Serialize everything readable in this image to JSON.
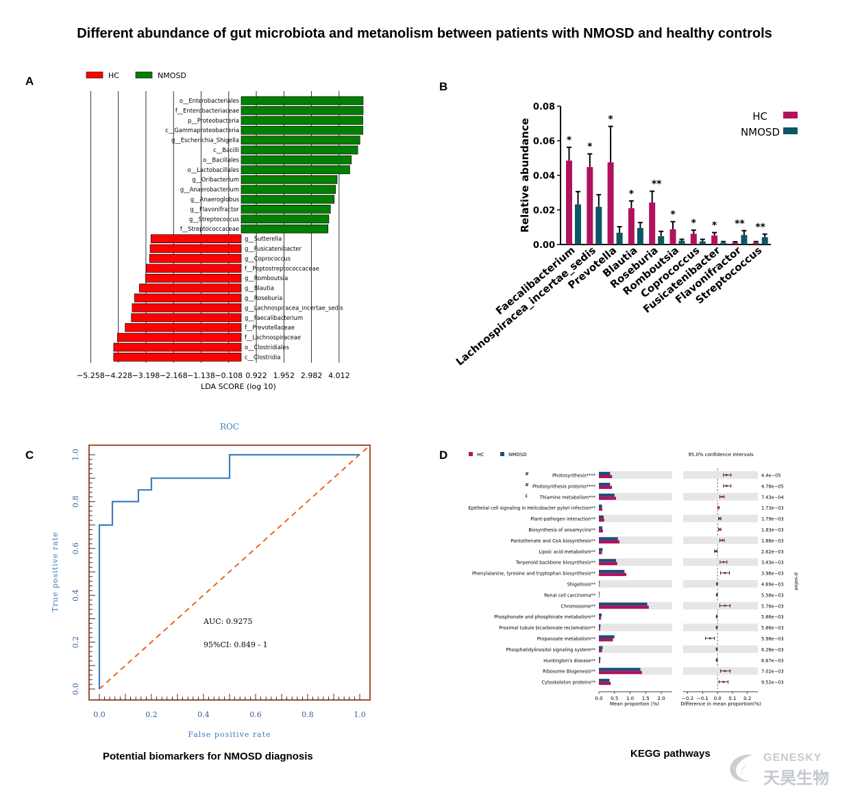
{
  "title": "Different abundance of gut microbiota and metanolism between patients with NMOSD and healthy controls",
  "panel_labels": {
    "a": "A",
    "b": "B",
    "c": "C",
    "d": "D"
  },
  "captions": {
    "c": "Potential biomarkers  for NMOSD diagnosis",
    "d": "KEGG pathways"
  },
  "colors": {
    "hc_lda": "#ff0000",
    "nmosd_lda": "#008000",
    "hc_bar": "#b0125e",
    "nmosd_bar": "#0e5566",
    "roc_curve": "#3b7dbd",
    "roc_diag": "#e8621f",
    "roc_frame": "#a0522d",
    "kegg_hc": "#b0125e",
    "kegg_nmosd": "#1f4e79"
  },
  "logo": {
    "latin": "GENESKY",
    "chinese": "天昊生物"
  },
  "chart_data": [
    {
      "id": "lefse",
      "type": "bar",
      "orientation": "horizontal",
      "legend": [
        "HC",
        "NMOSD"
      ],
      "xlabel": "LDA SCORE (log 10)",
      "xlim": [
        -5.4,
        4.6
      ],
      "xticks": [
        "-5.258",
        "-4.228",
        "-3.198",
        "-2.168",
        "-1.138",
        "-0.108",
        "0.922",
        "1.952",
        "2.982",
        "4.012"
      ],
      "xtick_values": [
        -5.258,
        -4.228,
        -3.198,
        -2.168,
        -1.138,
        -0.108,
        0.922,
        1.952,
        2.982,
        4.012
      ],
      "items": [
        {
          "label": "o__Enterobacteriales",
          "value": 4.55,
          "group": "NMOSD"
        },
        {
          "label": "f__Enterobacteriaceae",
          "value": 4.55,
          "group": "NMOSD"
        },
        {
          "label": "p__Proteobacteria",
          "value": 4.54,
          "group": "NMOSD"
        },
        {
          "label": "c__Gammaproteobacteria",
          "value": 4.54,
          "group": "NMOSD"
        },
        {
          "label": "g__Escherichia_Shigella",
          "value": 4.43,
          "group": "NMOSD"
        },
        {
          "label": "c__Bacilli",
          "value": 4.35,
          "group": "NMOSD"
        },
        {
          "label": "o__Bacillales",
          "value": 4.11,
          "group": "NMOSD"
        },
        {
          "label": "o__Lactobacillales",
          "value": 4.05,
          "group": "NMOSD"
        },
        {
          "label": "g__Oribacterium",
          "value": 3.58,
          "group": "NMOSD"
        },
        {
          "label": "g__Anaerobacterium",
          "value": 3.52,
          "group": "NMOSD"
        },
        {
          "label": "g__Anaeroglobus",
          "value": 3.47,
          "group": "NMOSD"
        },
        {
          "label": "g__Flavonifractor",
          "value": 3.33,
          "group": "NMOSD"
        },
        {
          "label": "g__Streptococcus",
          "value": 3.27,
          "group": "NMOSD"
        },
        {
          "label": "f__Streptococcaceae",
          "value": 3.24,
          "group": "NMOSD"
        },
        {
          "label": "g__Sutterella",
          "value": -3.37,
          "group": "HC"
        },
        {
          "label": "g__Fusicatenibacter",
          "value": -3.4,
          "group": "HC"
        },
        {
          "label": "g__Coprococcus",
          "value": -3.42,
          "group": "HC"
        },
        {
          "label": "f__Peptostreptococcaceae",
          "value": -3.55,
          "group": "HC"
        },
        {
          "label": "g__Romboutsia",
          "value": -3.57,
          "group": "HC"
        },
        {
          "label": "g__Blautia",
          "value": -3.8,
          "group": "HC"
        },
        {
          "label": "g__Roseburia",
          "value": -3.98,
          "group": "HC"
        },
        {
          "label": "g__Lachnospiracea_incertae_sedis",
          "value": -4.07,
          "group": "HC"
        },
        {
          "label": "g__Faecalibacterium",
          "value": -4.1,
          "group": "HC"
        },
        {
          "label": "f__Prevotellaceae",
          "value": -4.33,
          "group": "HC"
        },
        {
          "label": "f__Lachnospiraceae",
          "value": -4.62,
          "group": "HC"
        },
        {
          "label": "o__Clostridiales",
          "value": -4.76,
          "group": "HC"
        },
        {
          "label": "c__Clostridia",
          "value": -4.76,
          "group": "HC"
        }
      ]
    },
    {
      "id": "abundance",
      "type": "bar",
      "ylabel": "Relative abundance",
      "ylim": [
        0,
        0.08
      ],
      "yticks": [
        "0.00",
        "0.02",
        "0.04",
        "0.06",
        "0.08"
      ],
      "ytick_values": [
        0,
        0.02,
        0.04,
        0.06,
        0.08
      ],
      "legend_position": "top-right",
      "categories": [
        "Faecalibacterium",
        "Lachnospiracea_incertae_sedis",
        "Prevotella",
        "Blautia",
        "Roseburia",
        "Romboutsia",
        "Coprococcus",
        "Fusicatenibacter",
        "Flavonifractor",
        "Streptococcus"
      ],
      "series": [
        {
          "name": "HC",
          "values": [
            0.0485,
            0.0448,
            0.0475,
            0.021,
            0.0243,
            0.0088,
            0.0062,
            0.0052,
            0.0011,
            0.0011
          ],
          "errors": [
            0.0077,
            0.0076,
            0.0208,
            0.0042,
            0.0065,
            0.0044,
            0.0021,
            0.0017,
            0.0005,
            0.0006
          ]
        },
        {
          "name": "NMOSD",
          "values": [
            0.0232,
            0.0218,
            0.0068,
            0.0095,
            0.0048,
            0.0022,
            0.0018,
            0.001,
            0.0055,
            0.0042
          ],
          "errors": [
            0.0074,
            0.007,
            0.0035,
            0.0032,
            0.0028,
            0.0008,
            0.0012,
            0.0007,
            0.0025,
            0.0018
          ]
        }
      ],
      "significance": [
        "*",
        "*",
        "*",
        "*",
        "**",
        "*",
        "*",
        "*",
        "**",
        "**"
      ]
    },
    {
      "id": "roc",
      "type": "line",
      "title": "ROC",
      "xlabel": "False positive rate",
      "ylabel": "True positive rate",
      "xlim": [
        0,
        1
      ],
      "ylim": [
        0,
        1
      ],
      "ticks": [
        "0.0",
        "0.2",
        "0.4",
        "0.6",
        "0.8",
        "1.0"
      ],
      "tick_values": [
        0,
        0.2,
        0.4,
        0.6,
        0.8,
        1.0
      ],
      "curve": {
        "x": [
          0,
          0,
          0.05,
          0.05,
          0.15,
          0.15,
          0.2,
          0.2,
          0.5,
          0.5,
          1.0
        ],
        "y": [
          0,
          0.7,
          0.7,
          0.8,
          0.8,
          0.85,
          0.85,
          0.9,
          0.9,
          1.0,
          1.0
        ]
      },
      "annotations": [
        "AUC: 0.9275",
        "95%CI: 0.849 - 1"
      ]
    },
    {
      "id": "kegg",
      "type": "bar",
      "legend": [
        "HC",
        "NMOSD"
      ],
      "ci_title": "95.0% confidence intervals",
      "xlabel_left": "Mean proportion (%)",
      "xlabel_right": "Difference in mean proportion(%)",
      "pvalue_label": "p-value",
      "xticks_left": [
        "0.0",
        "0.5",
        "1.0",
        "1.5",
        "2.0"
      ],
      "xtick_values_left": [
        0,
        0.5,
        1.0,
        1.5,
        2.0
      ],
      "xticks_right": [
        "-0.2",
        "-0.1",
        "0.0",
        "0.1",
        "0.2"
      ],
      "xtick_values_right": [
        -0.2,
        -0.1,
        0,
        0.1,
        0.2
      ],
      "xlim_left": [
        0,
        2.35
      ],
      "xlim_right": [
        -0.23,
        0.27
      ],
      "pathways": [
        {
          "name": "Photosynthesis****",
          "hc": 0.42,
          "nmosd": 0.36,
          "diff": 0.06,
          "lo": 0.04,
          "hi": 0.09,
          "p": "4.4e-05",
          "mark": "#"
        },
        {
          "name": "Photosynthesis proteins****",
          "hc": 0.42,
          "nmosd": 0.36,
          "diff": 0.06,
          "lo": 0.04,
          "hi": 0.09,
          "p": "4.78e-05",
          "mark": "#"
        },
        {
          "name": "Thiamine metabolism***",
          "hc": 0.55,
          "nmosd": 0.5,
          "diff": 0.03,
          "lo": 0.015,
          "hi": 0.045,
          "p": "7.43e-04",
          "mark": "¢"
        },
        {
          "name": "Epithelial cell signaling in Helicobacter pylori infection**",
          "hc": 0.11,
          "nmosd": 0.1,
          "diff": 0.007,
          "lo": 0.003,
          "hi": 0.011,
          "p": "1.73e-03",
          "mark": ""
        },
        {
          "name": "Plant-pathogen interaction**",
          "hc": 0.17,
          "nmosd": 0.15,
          "diff": 0.015,
          "lo": 0.007,
          "hi": 0.023,
          "p": "1.79e-03",
          "mark": ""
        },
        {
          "name": "Biosynthesis of ansamycins**",
          "hc": 0.13,
          "nmosd": 0.11,
          "diff": 0.015,
          "lo": 0.007,
          "hi": 0.023,
          "p": "1.83e-03",
          "mark": ""
        },
        {
          "name": "Pantothenate and CoA biosynthesis**",
          "hc": 0.66,
          "nmosd": 0.61,
          "diff": 0.03,
          "lo": 0.015,
          "hi": 0.045,
          "p": "1.86e-03",
          "mark": ""
        },
        {
          "name": "Lipoic acid metabolism**",
          "hc": 0.1,
          "nmosd": 0.12,
          "diff": -0.012,
          "lo": -0.02,
          "hi": -0.004,
          "p": "2.62e-03",
          "mark": ""
        },
        {
          "name": "Terpenoid backbone biosynthesis**",
          "hc": 0.59,
          "nmosd": 0.55,
          "diff": 0.04,
          "lo": 0.017,
          "hi": 0.063,
          "p": "3.43e-03",
          "mark": ""
        },
        {
          "name": "Phenylalanine, tyrosine and tryptophan biosynthesis**",
          "hc": 0.88,
          "nmosd": 0.82,
          "diff": 0.05,
          "lo": 0.02,
          "hi": 0.08,
          "p": "3.96e-03",
          "mark": ""
        },
        {
          "name": "Shigellosis**",
          "hc": 0.015,
          "nmosd": 0.02,
          "diff": -0.003,
          "lo": -0.005,
          "hi": -0.001,
          "p": "4.69e-03",
          "mark": ""
        },
        {
          "name": "Renal cell carcinoma**",
          "hc": 0.015,
          "nmosd": 0.02,
          "diff": -0.004,
          "lo": -0.006,
          "hi": -0.002,
          "p": "5.58e-03",
          "mark": ""
        },
        {
          "name": "Chromosome**",
          "hc": 1.6,
          "nmosd": 1.55,
          "diff": 0.05,
          "lo": 0.015,
          "hi": 0.085,
          "p": "5.76e-03",
          "mark": ""
        },
        {
          "name": "Phosphonate and phosphinate metabolism**",
          "hc": 0.07,
          "nmosd": 0.09,
          "diff": -0.005,
          "lo": -0.008,
          "hi": -0.002,
          "p": "5.86e-03",
          "mark": ""
        },
        {
          "name": "Proximal tubule bicarbonate reclamation**",
          "hc": 0.04,
          "nmosd": 0.05,
          "diff": -0.005,
          "lo": -0.008,
          "hi": -0.002,
          "p": "5.86e-03",
          "mark": ""
        },
        {
          "name": "Propanoate metabolism**",
          "hc": 0.45,
          "nmosd": 0.5,
          "diff": -0.05,
          "lo": -0.08,
          "hi": -0.02,
          "p": "5.98e-03",
          "mark": ""
        },
        {
          "name": "Phosphatidylinositol signaling system**",
          "hc": 0.1,
          "nmosd": 0.12,
          "diff": -0.005,
          "lo": -0.008,
          "hi": -0.002,
          "p": "6.26e-03",
          "mark": ""
        },
        {
          "name": "Huntington's disease**",
          "hc": 0.04,
          "nmosd": 0.05,
          "diff": -0.005,
          "lo": -0.008,
          "hi": -0.002,
          "p": "6.67e-03",
          "mark": ""
        },
        {
          "name": "Ribosome Biogenesis**",
          "hc": 1.38,
          "nmosd": 1.33,
          "diff": 0.05,
          "lo": 0.02,
          "hi": 0.085,
          "p": "7.02e-03",
          "mark": ""
        },
        {
          "name": "Cytoskeleton proteins**",
          "hc": 0.38,
          "nmosd": 0.34,
          "diff": 0.04,
          "lo": 0.01,
          "hi": 0.07,
          "p": "9.52e-03",
          "mark": ""
        }
      ]
    }
  ]
}
